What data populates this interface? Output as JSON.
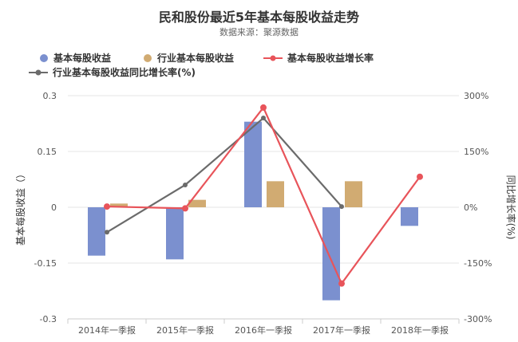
{
  "title": "民和股份最近5年基本每股收益走势",
  "subtitle": "数据来源：聚源数据",
  "colors": {
    "eps_bar": "#7b90cf",
    "industry_bar": "#d1ab72",
    "eps_growth_line": "#e8545a",
    "industry_growth_line": "#6b6b6b",
    "grid": "#e6e6e6",
    "axis_text": "#555555"
  },
  "chart_data": {
    "type": "bar",
    "title": "民和股份最近5年基本每股收益走势",
    "categories": [
      "2014年一季报",
      "2015年一季报",
      "2016年一季报",
      "2017年一季报",
      "2018年一季报"
    ],
    "ylabel_left": "基本每股收益（）",
    "ylabel_right": "同比增长率(%)",
    "ylim_left": [
      -0.3,
      0.3
    ],
    "yticks_left": [
      "0.3",
      "0.15",
      "0",
      "-0.15",
      "-0.3"
    ],
    "ylim_right": [
      -300,
      300
    ],
    "yticks_right": [
      "300%",
      "150%",
      "0%",
      "-150%",
      "-300%"
    ],
    "legend_position": "top-left",
    "grid": true,
    "series": [
      {
        "name": "基本每股收益",
        "type": "bar",
        "axis": "left",
        "values": [
          -0.13,
          -0.14,
          0.23,
          -0.25,
          -0.05
        ]
      },
      {
        "name": "行业基本每股收益",
        "type": "bar",
        "axis": "left",
        "values": [
          0.01,
          0.02,
          0.07,
          0.07,
          null
        ]
      },
      {
        "name": "基本每股收益增长率",
        "type": "line",
        "axis": "right",
        "values": [
          2,
          -3,
          268,
          -205,
          82
        ]
      },
      {
        "name": "行业基本每股收益同比增长率(%)",
        "type": "line",
        "axis": "right",
        "values": [
          -67,
          60,
          240,
          2,
          null
        ]
      }
    ]
  }
}
